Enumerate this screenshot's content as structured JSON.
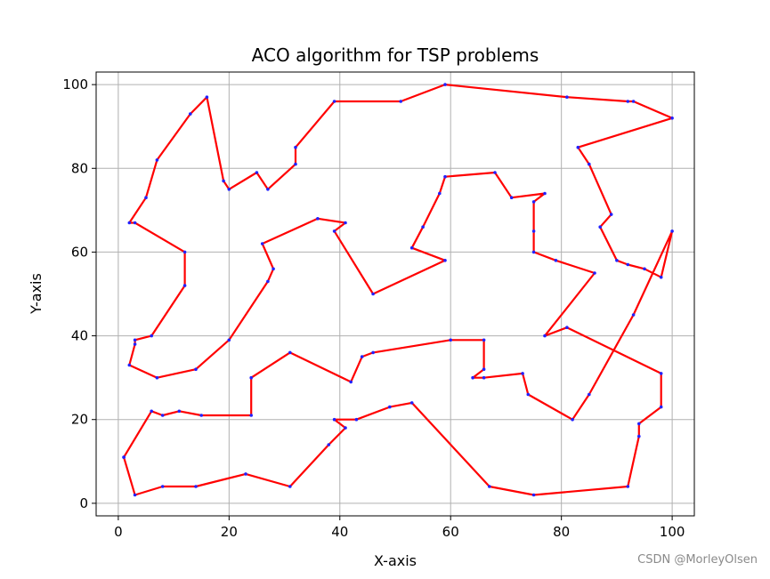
{
  "chart_data": {
    "type": "line",
    "title": "ACO algorithm for TSP problems",
    "xlabel": "X-axis",
    "ylabel": "Y-axis",
    "xlim": [
      -4,
      104
    ],
    "ylim": [
      -3,
      103
    ],
    "xticks": [
      0,
      20,
      40,
      60,
      80,
      100
    ],
    "yticks": [
      0,
      20,
      40,
      60,
      80,
      100
    ],
    "grid": true,
    "colors": {
      "route": "#ff0000",
      "nodes": "#2222ff",
      "grid": "#b0b0b0",
      "axes": "#000000"
    },
    "series": [
      {
        "points": [
          [
            1,
            11
          ],
          [
            3,
            2
          ],
          [
            8,
            4
          ],
          [
            14,
            4
          ],
          [
            23,
            7
          ],
          [
            31,
            4
          ],
          [
            38,
            14
          ],
          [
            41,
            18
          ],
          [
            39,
            20
          ],
          [
            43,
            20
          ],
          [
            49,
            23
          ],
          [
            53,
            24
          ],
          [
            67,
            4
          ],
          [
            75,
            2
          ],
          [
            92,
            4
          ],
          [
            94,
            16
          ],
          [
            94,
            19
          ],
          [
            98,
            23
          ],
          [
            98,
            31
          ],
          [
            81,
            42
          ],
          [
            77,
            40
          ],
          [
            86,
            55
          ],
          [
            79,
            58
          ],
          [
            75,
            60
          ],
          [
            75,
            65
          ],
          [
            75,
            72
          ],
          [
            77,
            74
          ],
          [
            71,
            73
          ],
          [
            68,
            79
          ],
          [
            59,
            78
          ],
          [
            58,
            74
          ],
          [
            55,
            66
          ],
          [
            53,
            61
          ],
          [
            59,
            58
          ],
          [
            46,
            50
          ],
          [
            39,
            65
          ],
          [
            41,
            67
          ],
          [
            36,
            68
          ],
          [
            26,
            62
          ],
          [
            28,
            56
          ],
          [
            27,
            53
          ],
          [
            20,
            39
          ],
          [
            14,
            32
          ],
          [
            7,
            30
          ],
          [
            2,
            33
          ],
          [
            3,
            38
          ],
          [
            3,
            39
          ],
          [
            6,
            40
          ],
          [
            12,
            52
          ],
          [
            12,
            60
          ],
          [
            3,
            67
          ],
          [
            2,
            67
          ],
          [
            5,
            73
          ],
          [
            7,
            82
          ],
          [
            13,
            93
          ],
          [
            16,
            97
          ],
          [
            19,
            77
          ],
          [
            20,
            75
          ],
          [
            25,
            79
          ],
          [
            27,
            75
          ],
          [
            32,
            81
          ],
          [
            32,
            85
          ],
          [
            39,
            96
          ],
          [
            51,
            96
          ],
          [
            59,
            100
          ],
          [
            81,
            97
          ],
          [
            92,
            96
          ],
          [
            93,
            96
          ],
          [
            100,
            92
          ],
          [
            83,
            85
          ],
          [
            85,
            81
          ],
          [
            89,
            69
          ],
          [
            87,
            66
          ],
          [
            90,
            58
          ],
          [
            92,
            57
          ],
          [
            95,
            56
          ],
          [
            98,
            54
          ],
          [
            100,
            65
          ],
          [
            93,
            45
          ],
          [
            85,
            26
          ],
          [
            82,
            20
          ],
          [
            74,
            26
          ],
          [
            73,
            31
          ],
          [
            66,
            30
          ],
          [
            64,
            30
          ],
          [
            66,
            32
          ],
          [
            66,
            39
          ],
          [
            60,
            39
          ],
          [
            46,
            36
          ],
          [
            44,
            35
          ],
          [
            42,
            29
          ],
          [
            31,
            36
          ],
          [
            24,
            30
          ],
          [
            24,
            21
          ],
          [
            15,
            21
          ],
          [
            11,
            22
          ],
          [
            8,
            21
          ],
          [
            6,
            22
          ],
          [
            1,
            11
          ]
        ]
      }
    ]
  },
  "watermark": "CSDN @MorleyOlsen"
}
